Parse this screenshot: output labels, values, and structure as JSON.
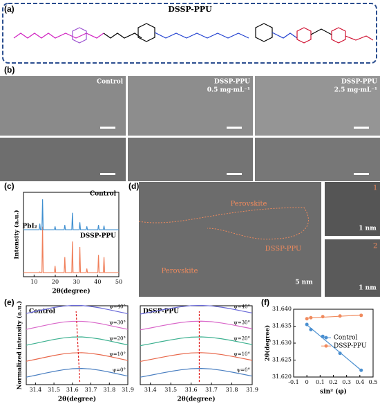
{
  "panels": [
    "(a)",
    "(b)",
    "(c)",
    "(d)",
    "(e)",
    "(f)"
  ],
  "structure": {
    "title": "DSSP-PPU"
  },
  "sem": {
    "labels": [
      "Control",
      "DSSP-PPU",
      "0.5 mg·mL⁻¹",
      "DSSP-PPU",
      "2.5 mg·mL⁻¹"
    ]
  },
  "tem": {
    "labels": [
      "Perovskite",
      "Perovskite",
      "DSSP-PPU",
      "5 nm",
      "1 nm",
      "1 nm",
      "1",
      "2"
    ]
  },
  "chart_data": [
    {
      "type": "line",
      "xlabel": "2θ(degree)",
      "ylabel": "Intensity (a.u.)",
      "xlim": [
        5,
        50
      ],
      "xticks": [
        10,
        20,
        30,
        40,
        50
      ],
      "ylim": [
        0,
        100
      ],
      "x": [
        5,
        12.4,
        12.7,
        13.0,
        13.7,
        14.0,
        14.3,
        19.6,
        19.9,
        20.2,
        24.2,
        24.5,
        24.8,
        27.8,
        28.1,
        28.4,
        31.3,
        31.6,
        31.9,
        34.6,
        34.9,
        35.2,
        40.1,
        40.4,
        40.7,
        42.7,
        43.0,
        43.3,
        50
      ],
      "series": [
        {
          "name": "DSSP-PPU",
          "color": "#f07f5a",
          "values": [
            2,
            2,
            3,
            2,
            2,
            70,
            2,
            2,
            12,
            2,
            2,
            25,
            2,
            2,
            48,
            2,
            2,
            40,
            2,
            2,
            8,
            2,
            2,
            28,
            2,
            2,
            25,
            2,
            2
          ]
        },
        {
          "name": "Control",
          "color": "#3f8fd0",
          "values": [
            3,
            3,
            12,
            3,
            3,
            48,
            3,
            3,
            8,
            3,
            3,
            10,
            3,
            3,
            28,
            3,
            3,
            14,
            3,
            3,
            8,
            3,
            3,
            10,
            3,
            3,
            9,
            3,
            3
          ]
        }
      ],
      "annotation": {
        "text": "PbI₂",
        "x": 12.7
      }
    },
    {
      "type": "line",
      "title": "Control",
      "xlabel": "2θ(degree)",
      "ylabel": "Normalized intensity (a.u.)",
      "xlim": [
        31.35,
        31.9
      ],
      "xticks": [
        31.4,
        31.5,
        31.6,
        31.7,
        31.8,
        31.9
      ],
      "ylim": [
        0,
        1
      ],
      "x": [
        31.35,
        31.4,
        31.45,
        31.5,
        31.55,
        31.6,
        31.65,
        31.7,
        31.75,
        31.8,
        31.85,
        31.9
      ],
      "peak_line": [
        31.64,
        31.62
      ],
      "series": [
        {
          "name": "ψ=0°",
          "color": "#4a7fc1",
          "values": [
            0.35,
            0.49,
            0.64,
            0.78,
            0.9,
            0.98,
            1.0,
            0.96,
            0.86,
            0.73,
            0.58,
            0.43
          ]
        },
        {
          "name": "ψ=10°",
          "color": "#e8674a",
          "values": [
            0.36,
            0.5,
            0.65,
            0.79,
            0.91,
            0.98,
            1.0,
            0.95,
            0.85,
            0.72,
            0.57,
            0.42
          ]
        },
        {
          "name": "ψ=20°",
          "color": "#3bb08f",
          "values": [
            0.38,
            0.52,
            0.67,
            0.81,
            0.92,
            0.99,
            1.0,
            0.94,
            0.84,
            0.7,
            0.55,
            0.4
          ]
        },
        {
          "name": "ψ=30°",
          "color": "#d966c9",
          "values": [
            0.39,
            0.53,
            0.68,
            0.82,
            0.93,
            0.99,
            0.99,
            0.93,
            0.82,
            0.68,
            0.53,
            0.39
          ]
        },
        {
          "name": "ψ=40°",
          "color": "#6a6ad8",
          "values": [
            0.4,
            0.55,
            0.7,
            0.84,
            0.94,
            1.0,
            0.99,
            0.92,
            0.81,
            0.67,
            0.52,
            0.38
          ]
        }
      ]
    },
    {
      "type": "line",
      "title": "DSSP-PPU",
      "xlabel": "2θ(degree)",
      "xlim": [
        31.35,
        31.9
      ],
      "xticks": [
        31.4,
        31.5,
        31.6,
        31.7,
        31.8,
        31.9
      ],
      "ylim": [
        0,
        1
      ],
      "x": [
        31.35,
        31.4,
        31.45,
        31.5,
        31.55,
        31.6,
        31.65,
        31.7,
        31.75,
        31.8,
        31.85,
        31.9
      ],
      "peak_line": [
        31.64,
        31.64
      ],
      "series": [
        {
          "name": "ψ=0°",
          "color": "#4a7fc1",
          "values": [
            0.35,
            0.49,
            0.64,
            0.78,
            0.9,
            0.98,
            1.0,
            0.96,
            0.86,
            0.73,
            0.58,
            0.43
          ]
        },
        {
          "name": "ψ=10°",
          "color": "#e8674a",
          "values": [
            0.35,
            0.49,
            0.64,
            0.78,
            0.9,
            0.98,
            1.0,
            0.96,
            0.86,
            0.73,
            0.58,
            0.43
          ]
        },
        {
          "name": "ψ=20°",
          "color": "#3bb08f",
          "values": [
            0.35,
            0.49,
            0.64,
            0.78,
            0.9,
            0.98,
            1.0,
            0.96,
            0.86,
            0.73,
            0.58,
            0.43
          ]
        },
        {
          "name": "ψ=30°",
          "color": "#d966c9",
          "values": [
            0.35,
            0.49,
            0.64,
            0.78,
            0.9,
            0.98,
            1.0,
            0.96,
            0.86,
            0.73,
            0.58,
            0.43
          ]
        },
        {
          "name": "ψ=40°",
          "color": "#6a6ad8",
          "values": [
            0.35,
            0.49,
            0.64,
            0.78,
            0.9,
            0.98,
            1.0,
            0.96,
            0.86,
            0.73,
            0.58,
            0.43
          ]
        }
      ]
    },
    {
      "type": "scatter",
      "xlabel": "sin² (φ)",
      "ylabel": "2θ(degree)",
      "xlim": [
        -0.1,
        0.5
      ],
      "xticks": [
        -0.1,
        0,
        0.1,
        0.2,
        0.3,
        0.4,
        0.5
      ],
      "ylim": [
        31.62,
        31.64
      ],
      "yticks": [
        {
          "value": 31.62,
          "label": "31.620"
        },
        {
          "value": 31.625,
          "label": "31.625"
        },
        {
          "value": 31.63,
          "label": "31.630"
        },
        {
          "value": 31.635,
          "label": "31.635"
        },
        {
          "value": 31.64,
          "label": "31.640"
        }
      ],
      "legend": "right",
      "x": [
        0,
        0.03,
        0.12,
        0.25,
        0.41
      ],
      "series": [
        {
          "name": "Control",
          "color": "#4a8fd0",
          "values": [
            31.6355,
            31.634,
            31.632,
            31.627,
            31.622
          ]
        },
        {
          "name": "DSSP-PPU",
          "color": "#f08a5d",
          "values": [
            31.6372,
            31.6375,
            31.6378,
            31.638,
            31.6382
          ]
        }
      ]
    }
  ]
}
